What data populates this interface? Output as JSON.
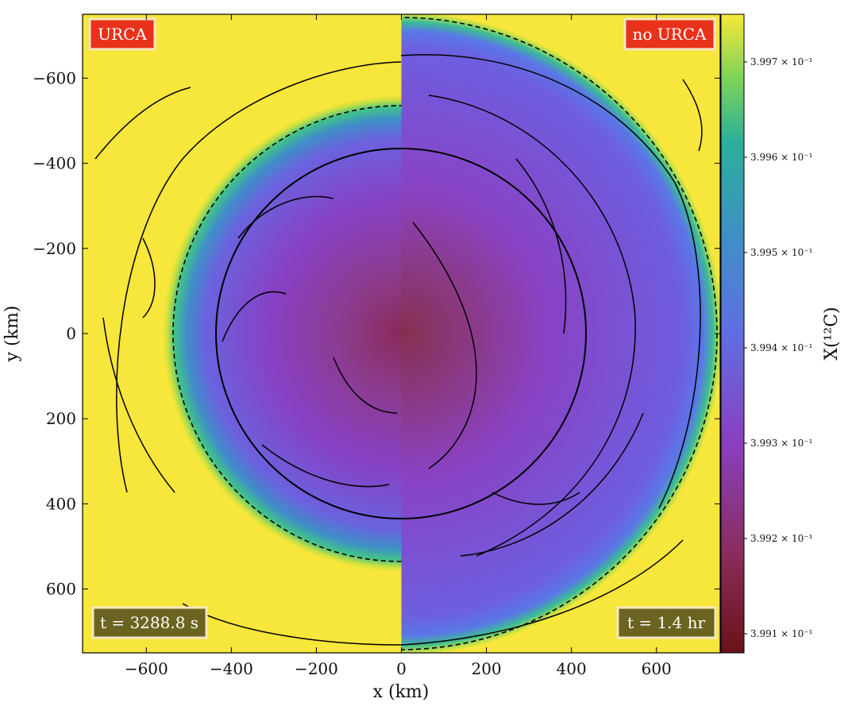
{
  "chart_data": {
    "type": "heatmap",
    "x_label": "x  (km)",
    "y_label": "y  (km)",
    "xlim": [
      -750,
      750
    ],
    "xticks": [
      {
        "value": -600,
        "label": "−600"
      },
      {
        "value": -400,
        "label": "−400"
      },
      {
        "value": -200,
        "label": "−200"
      },
      0,
      200,
      400,
      600
    ],
    "ylim": [
      -750,
      750
    ],
    "y_inverted": true,
    "yticks": [
      {
        "value": -600,
        "label": "−600"
      },
      {
        "value": -400,
        "label": "−400"
      },
      {
        "value": -200,
        "label": "−200"
      },
      0,
      200,
      400,
      600
    ],
    "colorbar": {
      "label": "X(¹²C)",
      "clim": [
        0.39908,
        0.39975
      ],
      "ticks": [
        {
          "value": 0.3991,
          "label": "3.991 × 10⁻¹"
        },
        {
          "value": 0.3992,
          "label": "3.992 × 10⁻¹"
        },
        {
          "value": 0.3993,
          "label": "3.993 × 10⁻¹"
        },
        {
          "value": 0.3994,
          "label": "3.994 × 10⁻¹"
        },
        {
          "value": 0.3995,
          "label": "3.995 × 10⁻¹"
        },
        {
          "value": 0.3996,
          "label": "3.996 × 10⁻¹"
        },
        {
          "value": 0.3997,
          "label": "3.997 × 10⁻¹"
        }
      ]
    },
    "annotations": {
      "left_label": "URCA",
      "right_label": "no URCA",
      "left_time": "t = 3288.8 s",
      "right_time": "t = 1.4 hr"
    }
  }
}
